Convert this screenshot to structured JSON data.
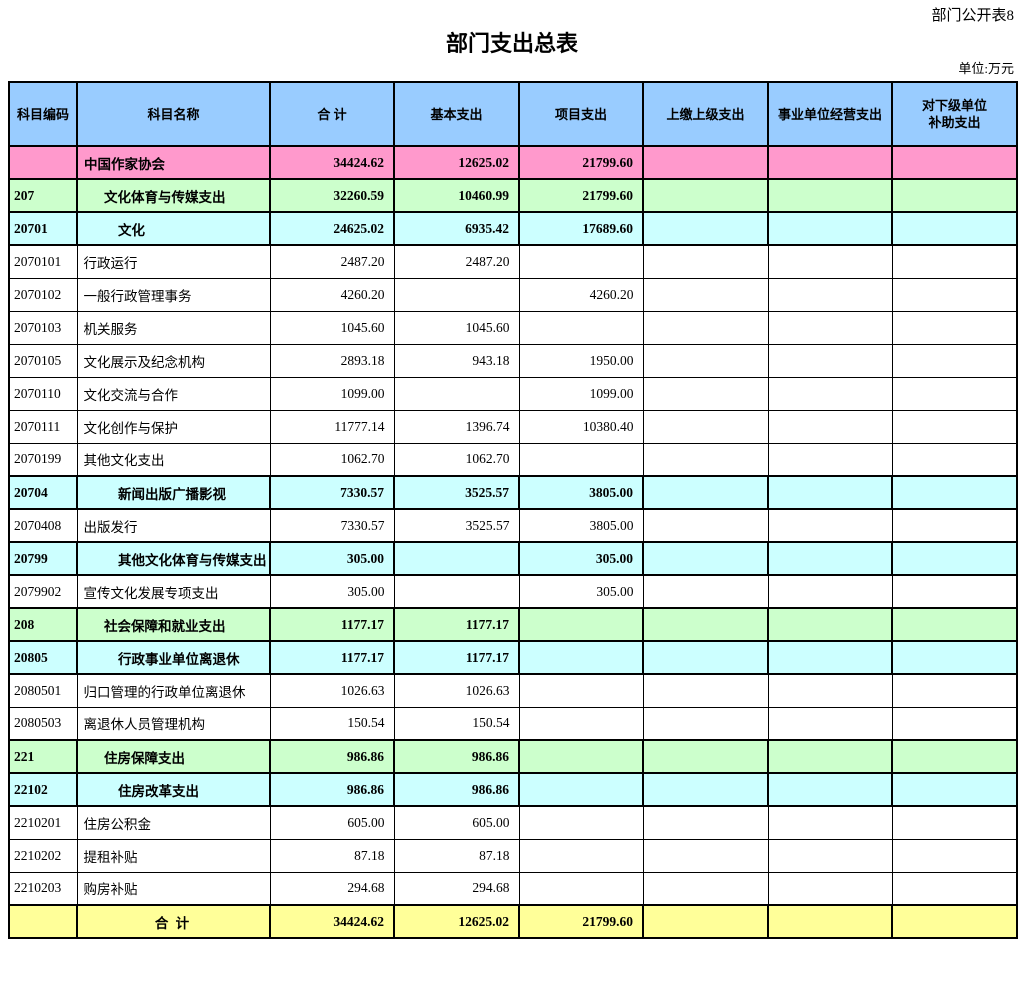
{
  "page": {
    "table_note": "部门公开表8",
    "title": "部门支出总表",
    "unit_note": "单位:万元"
  },
  "table": {
    "columns": [
      "科目编码",
      "科目名称",
      "合  计",
      "基本支出",
      "项目支出",
      "上缴上级支出",
      "事业单位经营支出",
      "对下级单位\n补助支出"
    ],
    "header_bg": "#99CCFF",
    "row_colors": {
      "pink": "#FF99CC",
      "green": "#CCFFCC",
      "cyan": "#CCFFFF",
      "yellow": "#FFFF99",
      "white": "#FFFFFF"
    },
    "rows": [
      {
        "style": "pink",
        "indent": 0,
        "code": "",
        "name": "中国作家协会",
        "total": "34424.62",
        "basic": "12625.02",
        "project": "21799.60",
        "upper": "",
        "business": "",
        "subsidy": ""
      },
      {
        "style": "green",
        "indent": 1,
        "code": "207",
        "name": "文化体育与传媒支出",
        "total": "32260.59",
        "basic": "10460.99",
        "project": "21799.60",
        "upper": "",
        "business": "",
        "subsidy": ""
      },
      {
        "style": "cyan",
        "indent": 2,
        "code": "20701",
        "name": "文化",
        "total": "24625.02",
        "basic": "6935.42",
        "project": "17689.60",
        "upper": "",
        "business": "",
        "subsidy": ""
      },
      {
        "style": "white",
        "indent": 0,
        "code": "2070101",
        "name": "行政运行",
        "total": "2487.20",
        "basic": "2487.20",
        "project": "",
        "upper": "",
        "business": "",
        "subsidy": ""
      },
      {
        "style": "white",
        "indent": 0,
        "code": "2070102",
        "name": "一般行政管理事务",
        "total": "4260.20",
        "basic": "",
        "project": "4260.20",
        "upper": "",
        "business": "",
        "subsidy": ""
      },
      {
        "style": "white",
        "indent": 0,
        "code": "2070103",
        "name": "机关服务",
        "total": "1045.60",
        "basic": "1045.60",
        "project": "",
        "upper": "",
        "business": "",
        "subsidy": ""
      },
      {
        "style": "white",
        "indent": 0,
        "code": "2070105",
        "name": "文化展示及纪念机构",
        "total": "2893.18",
        "basic": "943.18",
        "project": "1950.00",
        "upper": "",
        "business": "",
        "subsidy": ""
      },
      {
        "style": "white",
        "indent": 0,
        "code": "2070110",
        "name": "文化交流与合作",
        "total": "1099.00",
        "basic": "",
        "project": "1099.00",
        "upper": "",
        "business": "",
        "subsidy": ""
      },
      {
        "style": "white",
        "indent": 0,
        "code": "2070111",
        "name": "文化创作与保护",
        "total": "11777.14",
        "basic": "1396.74",
        "project": "10380.40",
        "upper": "",
        "business": "",
        "subsidy": ""
      },
      {
        "style": "white",
        "indent": 0,
        "code": "2070199",
        "name": "其他文化支出",
        "total": "1062.70",
        "basic": "1062.70",
        "project": "",
        "upper": "",
        "business": "",
        "subsidy": ""
      },
      {
        "style": "cyan",
        "indent": 2,
        "code": "20704",
        "name": "新闻出版广播影视",
        "total": "7330.57",
        "basic": "3525.57",
        "project": "3805.00",
        "upper": "",
        "business": "",
        "subsidy": ""
      },
      {
        "style": "white",
        "indent": 0,
        "code": "2070408",
        "name": "出版发行",
        "total": "7330.57",
        "basic": "3525.57",
        "project": "3805.00",
        "upper": "",
        "business": "",
        "subsidy": ""
      },
      {
        "style": "cyan",
        "indent": 2,
        "code": "20799",
        "name": "其他文化体育与传媒支出",
        "total": "305.00",
        "basic": "",
        "project": "305.00",
        "upper": "",
        "business": "",
        "subsidy": ""
      },
      {
        "style": "white",
        "indent": 0,
        "code": "2079902",
        "name": "宣传文化发展专项支出",
        "total": "305.00",
        "basic": "",
        "project": "305.00",
        "upper": "",
        "business": "",
        "subsidy": ""
      },
      {
        "style": "green",
        "indent": 1,
        "code": "208",
        "name": "社会保障和就业支出",
        "total": "1177.17",
        "basic": "1177.17",
        "project": "",
        "upper": "",
        "business": "",
        "subsidy": ""
      },
      {
        "style": "cyan",
        "indent": 2,
        "code": "20805",
        "name": "行政事业单位离退休",
        "total": "1177.17",
        "basic": "1177.17",
        "project": "",
        "upper": "",
        "business": "",
        "subsidy": ""
      },
      {
        "style": "white",
        "indent": 0,
        "code": "2080501",
        "name": "归口管理的行政单位离退休",
        "total": "1026.63",
        "basic": "1026.63",
        "project": "",
        "upper": "",
        "business": "",
        "subsidy": ""
      },
      {
        "style": "white",
        "indent": 0,
        "code": "2080503",
        "name": "离退休人员管理机构",
        "total": "150.54",
        "basic": "150.54",
        "project": "",
        "upper": "",
        "business": "",
        "subsidy": ""
      },
      {
        "style": "green",
        "indent": 1,
        "code": "221",
        "name": "住房保障支出",
        "total": "986.86",
        "basic": "986.86",
        "project": "",
        "upper": "",
        "business": "",
        "subsidy": ""
      },
      {
        "style": "cyan",
        "indent": 2,
        "code": "22102",
        "name": "住房改革支出",
        "total": "986.86",
        "basic": "986.86",
        "project": "",
        "upper": "",
        "business": "",
        "subsidy": ""
      },
      {
        "style": "white",
        "indent": 0,
        "code": "2210201",
        "name": "住房公积金",
        "total": "605.00",
        "basic": "605.00",
        "project": "",
        "upper": "",
        "business": "",
        "subsidy": ""
      },
      {
        "style": "white",
        "indent": 0,
        "code": "2210202",
        "name": "提租补贴",
        "total": "87.18",
        "basic": "87.18",
        "project": "",
        "upper": "",
        "business": "",
        "subsidy": ""
      },
      {
        "style": "white",
        "indent": 0,
        "code": "2210203",
        "name": "购房补贴",
        "total": "294.68",
        "basic": "294.68",
        "project": "",
        "upper": "",
        "business": "",
        "subsidy": ""
      },
      {
        "style": "yellow",
        "center": true,
        "code": "",
        "name": "合      计",
        "total": "34424.62",
        "basic": "12625.02",
        "project": "21799.60",
        "upper": "",
        "business": "",
        "subsidy": ""
      }
    ]
  }
}
